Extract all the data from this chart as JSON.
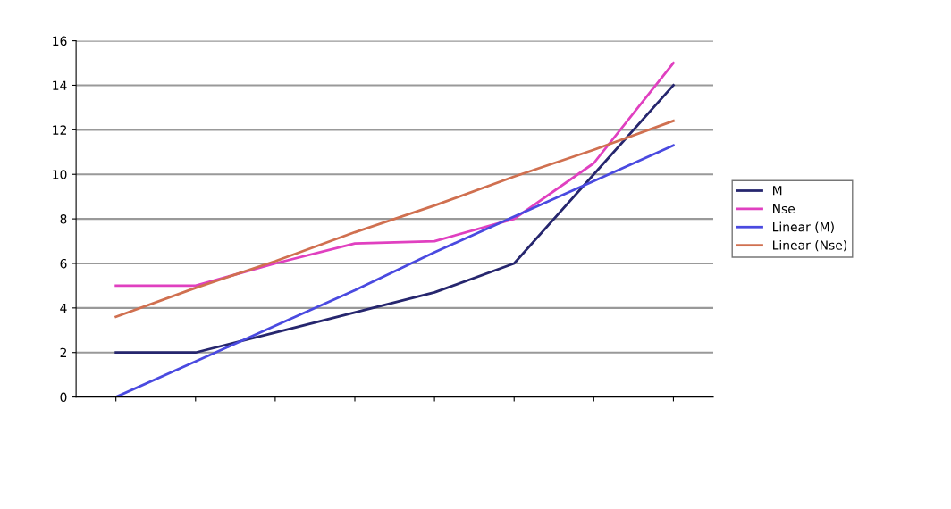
{
  "chart_data": {
    "type": "line",
    "categories": [
      null,
      null,
      null,
      null,
      null,
      null,
      null,
      null
    ],
    "series": [
      {
        "name": "M",
        "color": "#26266e",
        "values": [
          2,
          2,
          2.9,
          3.8,
          4.7,
          6,
          10,
          14
        ]
      },
      {
        "name": "Nse",
        "color": "#e040c0",
        "values": [
          5,
          5,
          6,
          6.9,
          7,
          8,
          10.5,
          15
        ]
      },
      {
        "name": "Linear (M)",
        "color": "#4a4ae0",
        "values": [
          0,
          1.6,
          3.2,
          4.8,
          6.5,
          8.1,
          9.7,
          11.3
        ]
      },
      {
        "name": "Linear (Nse)",
        "color": "#d07050",
        "values": [
          3.6,
          4.9,
          6.1,
          7.4,
          8.6,
          9.9,
          11.1,
          12.4
        ]
      }
    ],
    "ylim": [
      0,
      16
    ],
    "yticks": [
      0,
      2,
      4,
      6,
      8,
      10,
      12,
      14,
      16
    ],
    "grid": "y",
    "legend": "right"
  }
}
